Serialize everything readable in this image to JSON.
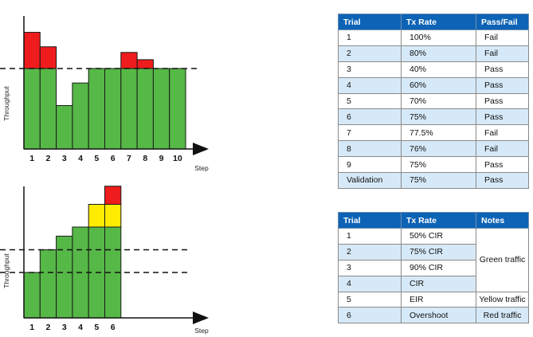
{
  "chart_data": [
    {
      "type": "bar",
      "ylabel": "Throughput",
      "xlabel": "Step",
      "categories": [
        "1",
        "2",
        "3",
        "4",
        "5",
        "6",
        "7",
        "8",
        "9",
        "10"
      ],
      "threshold": 100,
      "ylim": [
        0,
        100
      ],
      "series": [
        {
          "values": [
            100,
            100,
            54,
            82,
            100,
            100,
            100,
            100,
            100,
            100
          ],
          "color": "#56b847"
        },
        {
          "values": [
            45,
            27,
            0,
            0,
            0,
            0,
            20,
            11,
            0,
            0
          ],
          "color": "#ee1c1c"
        }
      ]
    },
    {
      "type": "bar",
      "ylabel": "Throughput",
      "xlabel": "Step",
      "categories": [
        "1",
        "2",
        "3",
        "4",
        "5",
        "6"
      ],
      "thresholds": [
        50,
        75
      ],
      "ylim": [
        0,
        100
      ],
      "series": [
        {
          "values": [
            50,
            75,
            90,
            100,
            100,
            100
          ],
          "color": "#56b847"
        },
        {
          "values": [
            0,
            0,
            0,
            0,
            25,
            25
          ],
          "color": "#ffec00"
        },
        {
          "values": [
            0,
            0,
            0,
            0,
            0,
            20
          ],
          "color": "#ee1c1c"
        }
      ]
    }
  ],
  "table1": {
    "headers": [
      "Trial",
      "Tx Rate",
      "Pass/Fail"
    ],
    "rows": [
      [
        "1",
        "100%",
        "Fail"
      ],
      [
        "2",
        "80%",
        "Fail"
      ],
      [
        "3",
        "40%",
        "Pass"
      ],
      [
        "4",
        "60%",
        "Pass"
      ],
      [
        "5",
        "70%",
        "Pass"
      ],
      [
        "6",
        "75%",
        "Pass"
      ],
      [
        "7",
        "77.5%",
        "Fail"
      ],
      [
        "8",
        "76%",
        "Fail"
      ],
      [
        "9",
        "75%",
        "Pass"
      ],
      [
        "Validation",
        "75%",
        "Pass"
      ]
    ]
  },
  "table2": {
    "headers": [
      "Trial",
      "Tx Rate",
      "Notes"
    ],
    "rows": [
      [
        "1",
        "50% CIR"
      ],
      [
        "2",
        "75% CIR"
      ],
      [
        "3",
        "90% CIR"
      ],
      [
        "4",
        "CIR"
      ],
      [
        "5",
        "EIR"
      ],
      [
        "6",
        "Overshoot"
      ]
    ],
    "notes": [
      "Green traffic",
      "Yellow traffic",
      "Red traffic"
    ]
  },
  "colors": {
    "header": "#0d63b5",
    "shade": "#d6e9f8"
  }
}
